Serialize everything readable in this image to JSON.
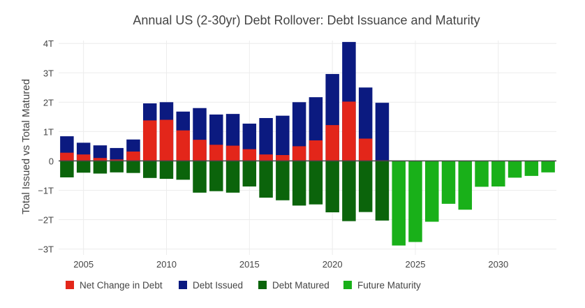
{
  "chart_data": {
    "type": "bar",
    "title": "Annual US (2-30yr) Debt Rollover: Debt Issuance and Maturity",
    "xlabel": "",
    "ylabel": "Total Issued vs Total Matured",
    "ylim": [
      -3.2,
      4.1
    ],
    "xlim": [
      2003.5,
      2033.5
    ],
    "y_ticks": [
      -3,
      -2,
      -1,
      0,
      1,
      2,
      3,
      4
    ],
    "y_tick_labels": [
      "−3T",
      "−2T",
      "−1T",
      "0",
      "1T",
      "2T",
      "3T",
      "4T"
    ],
    "x_ticks": [
      2005,
      2010,
      2015,
      2020,
      2025,
      2030
    ],
    "x_tick_labels": [
      "2005",
      "2010",
      "2015",
      "2020",
      "2025",
      "2030"
    ],
    "grid": true,
    "legend_position": "bottom-left",
    "colors": {
      "net_change": "#e3261a",
      "issued": "#0b1a80",
      "matured": "#0b640b",
      "future": "#19b019",
      "grid": "#ececec",
      "zero_line": "#444444",
      "text": "#444444"
    },
    "series": [
      {
        "name": "Net Change in Debt",
        "color": "#e3261a",
        "x": [
          2004,
          2005,
          2006,
          2007,
          2008,
          2009,
          2010,
          2011,
          2012,
          2013,
          2014,
          2015,
          2016,
          2017,
          2018,
          2019,
          2020,
          2021,
          2022,
          2023
        ],
        "values": [
          0.28,
          0.22,
          0.1,
          0.05,
          0.32,
          1.38,
          1.4,
          1.04,
          0.72,
          0.55,
          0.52,
          0.4,
          0.22,
          0.2,
          0.5,
          0.7,
          1.22,
          2.02,
          0.76,
          0.02
        ]
      },
      {
        "name": "Debt Issued",
        "color": "#0b1a80",
        "x": [
          2004,
          2005,
          2006,
          2007,
          2008,
          2009,
          2010,
          2011,
          2012,
          2013,
          2014,
          2015,
          2016,
          2017,
          2018,
          2019,
          2020,
          2021,
          2022,
          2023
        ],
        "values": [
          0.84,
          0.62,
          0.53,
          0.44,
          0.73,
          1.96,
          2.0,
          1.68,
          1.8,
          1.58,
          1.6,
          1.27,
          1.46,
          1.54,
          2.0,
          2.17,
          2.96,
          4.05,
          2.5,
          1.98
        ]
      },
      {
        "name": "Debt Matured",
        "color": "#0b640b",
        "x": [
          2004,
          2005,
          2006,
          2007,
          2008,
          2009,
          2010,
          2011,
          2012,
          2013,
          2014,
          2015,
          2016,
          2017,
          2018,
          2019,
          2020,
          2021,
          2022,
          2023
        ],
        "values": [
          -0.56,
          -0.4,
          -0.43,
          -0.39,
          -0.41,
          -0.58,
          -0.61,
          -0.64,
          -1.08,
          -1.03,
          -1.08,
          -0.87,
          -1.25,
          -1.34,
          -1.52,
          -1.48,
          -1.75,
          -2.05,
          -1.74,
          -2.03
        ]
      },
      {
        "name": "Future Maturity",
        "color": "#19b019",
        "x": [
          2024,
          2025,
          2026,
          2027,
          2028,
          2029,
          2030,
          2031,
          2032,
          2033
        ],
        "values": [
          -2.88,
          -2.76,
          -2.07,
          -1.46,
          -1.66,
          -0.88,
          -0.87,
          -0.57,
          -0.51,
          -0.39
        ]
      }
    ]
  }
}
